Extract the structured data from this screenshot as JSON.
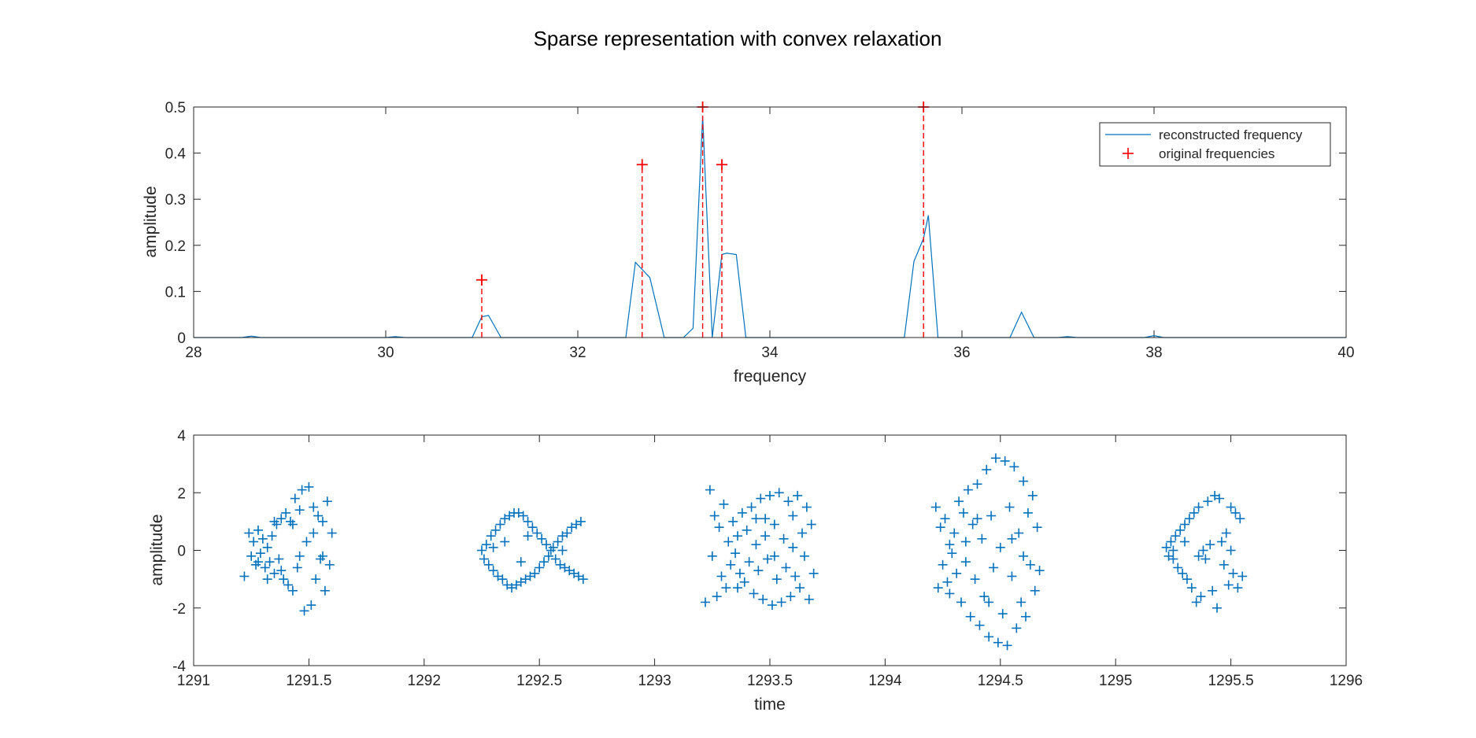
{
  "figure_title": "Sparse representation with convex relaxation",
  "chart_data": [
    {
      "type": "line",
      "xlabel": "frequency",
      "ylabel": "amplitude",
      "xlim": [
        28,
        40
      ],
      "ylim": [
        0,
        0.5
      ],
      "xticks": [
        28,
        30,
        32,
        34,
        36,
        38,
        40
      ],
      "yticks": [
        0,
        0.1,
        0.2,
        0.3,
        0.4,
        0.5
      ],
      "legend_position": "top-right",
      "series": [
        {
          "name": "reconstructed frequency",
          "color": "#0072BD",
          "style": "line",
          "x": [
            28.0,
            28.5,
            28.6,
            28.7,
            30.0,
            30.1,
            30.2,
            30.9,
            31.0,
            31.07,
            31.2,
            32.5,
            32.6,
            32.75,
            32.9,
            33.1,
            33.2,
            33.3,
            33.4,
            33.5,
            33.55,
            33.65,
            33.75,
            35.4,
            35.5,
            35.6,
            35.65,
            35.75,
            36.5,
            36.62,
            36.75,
            37.0,
            37.1,
            37.2,
            37.9,
            38.0,
            38.1,
            40.0
          ],
          "y": [
            0.0,
            0.0,
            0.003,
            0.0,
            0.0,
            0.002,
            0.0,
            0.0,
            0.045,
            0.048,
            0.0,
            0.0,
            0.163,
            0.13,
            0.0,
            0.0,
            0.02,
            0.48,
            0.0,
            0.18,
            0.183,
            0.18,
            0.0,
            0.0,
            0.165,
            0.215,
            0.265,
            0.0,
            0.0,
            0.055,
            0.0,
            0.0,
            0.002,
            0.0,
            0.0,
            0.004,
            0.0,
            0.0
          ]
        },
        {
          "name": "original frequencies",
          "color": "#FF0000",
          "style": "stem-plus",
          "x": [
            31.0,
            32.67,
            33.3,
            33.5,
            35.6
          ],
          "y": [
            0.125,
            0.375,
            0.5,
            0.375,
            0.5
          ]
        }
      ]
    },
    {
      "type": "scatter",
      "xlabel": "time",
      "ylabel": "amplitude",
      "xlim": [
        1291,
        1296
      ],
      "ylim": [
        -4,
        4
      ],
      "xticks": [
        1291,
        1291.5,
        1292,
        1292.5,
        1293,
        1293.5,
        1294,
        1294.5,
        1295,
        1295.5,
        1296
      ],
      "yticks": [
        -4,
        -2,
        0,
        2,
        4
      ],
      "marker": "+",
      "color": "#0072BD",
      "points": [
        [
          1291.22,
          -0.9
        ],
        [
          1291.24,
          0.6
        ],
        [
          1291.25,
          -0.2
        ],
        [
          1291.26,
          0.3
        ],
        [
          1291.27,
          -0.5
        ],
        [
          1291.28,
          0.7
        ],
        [
          1291.29,
          -0.1
        ],
        [
          1291.3,
          0.4
        ],
        [
          1291.31,
          -0.6
        ],
        [
          1291.32,
          0.1
        ],
        [
          1291.33,
          -0.4
        ],
        [
          1291.34,
          0.5
        ],
        [
          1291.35,
          -0.8
        ],
        [
          1291.36,
          0.9
        ],
        [
          1291.37,
          -0.3
        ],
        [
          1291.38,
          1.1
        ],
        [
          1291.39,
          -1.0
        ],
        [
          1291.4,
          1.3
        ],
        [
          1291.41,
          -1.2
        ],
        [
          1291.42,
          1.0
        ],
        [
          1291.43,
          -1.4
        ],
        [
          1291.44,
          1.8
        ],
        [
          1291.45,
          -0.6
        ],
        [
          1291.46,
          1.4
        ],
        [
          1291.47,
          2.1
        ],
        [
          1291.48,
          -2.1
        ],
        [
          1291.49,
          0.3
        ],
        [
          1291.5,
          2.2
        ],
        [
          1291.51,
          -1.9
        ],
        [
          1291.52,
          1.5
        ],
        [
          1291.53,
          -1.0
        ],
        [
          1291.54,
          1.2
        ],
        [
          1291.55,
          -0.3
        ],
        [
          1291.56,
          1.0
        ],
        [
          1291.57,
          -1.4
        ],
        [
          1291.58,
          1.7
        ],
        [
          1291.59,
          -0.5
        ],
        [
          1291.6,
          0.6
        ],
        [
          1291.46,
          -0.2
        ],
        [
          1291.43,
          0.9
        ],
        [
          1291.35,
          1.0
        ],
        [
          1291.32,
          -1.0
        ],
        [
          1291.28,
          -0.4
        ],
        [
          1291.38,
          -0.7
        ],
        [
          1291.52,
          0.6
        ],
        [
          1291.56,
          -0.2
        ],
        [
          1292.25,
          0.0
        ],
        [
          1292.26,
          -0.3
        ],
        [
          1292.27,
          0.2
        ],
        [
          1292.28,
          -0.5
        ],
        [
          1292.29,
          0.5
        ],
        [
          1292.3,
          -0.7
        ],
        [
          1292.31,
          0.7
        ],
        [
          1292.32,
          -0.9
        ],
        [
          1292.33,
          0.9
        ],
        [
          1292.34,
          -1.0
        ],
        [
          1292.35,
          1.1
        ],
        [
          1292.36,
          -1.2
        ],
        [
          1292.37,
          1.2
        ],
        [
          1292.38,
          -1.3
        ],
        [
          1292.39,
          1.3
        ],
        [
          1292.4,
          -1.2
        ],
        [
          1292.41,
          1.3
        ],
        [
          1292.42,
          -1.1
        ],
        [
          1292.43,
          1.2
        ],
        [
          1292.44,
          -1.0
        ],
        [
          1292.45,
          1.0
        ],
        [
          1292.46,
          -0.9
        ],
        [
          1292.47,
          0.8
        ],
        [
          1292.48,
          -0.8
        ],
        [
          1292.49,
          0.6
        ],
        [
          1292.5,
          -0.6
        ],
        [
          1292.51,
          0.4
        ],
        [
          1292.52,
          -0.4
        ],
        [
          1292.53,
          0.2
        ],
        [
          1292.54,
          -0.2
        ],
        [
          1292.55,
          0.0
        ],
        [
          1292.56,
          0.1
        ],
        [
          1292.57,
          -0.3
        ],
        [
          1292.58,
          0.3
        ],
        [
          1292.59,
          -0.5
        ],
        [
          1292.6,
          0.5
        ],
        [
          1292.61,
          -0.6
        ],
        [
          1292.62,
          0.6
        ],
        [
          1292.63,
          -0.7
        ],
        [
          1292.64,
          0.8
        ],
        [
          1292.65,
          -0.8
        ],
        [
          1292.66,
          0.9
        ],
        [
          1292.67,
          -0.9
        ],
        [
          1292.68,
          1.0
        ],
        [
          1292.69,
          -1.0
        ],
        [
          1292.35,
          0.3
        ],
        [
          1292.42,
          -0.4
        ],
        [
          1292.3,
          0.1
        ],
        [
          1292.45,
          0.5
        ],
        [
          1292.6,
          0.0
        ],
        [
          1293.22,
          -1.8
        ],
        [
          1293.24,
          2.1
        ],
        [
          1293.25,
          -0.2
        ],
        [
          1293.26,
          1.2
        ],
        [
          1293.27,
          -1.6
        ],
        [
          1293.28,
          0.8
        ],
        [
          1293.29,
          -0.9
        ],
        [
          1293.3,
          1.6
        ],
        [
          1293.31,
          -1.3
        ],
        [
          1293.32,
          0.3
        ],
        [
          1293.33,
          -0.5
        ],
        [
          1293.34,
          1.0
        ],
        [
          1293.35,
          -0.1
        ],
        [
          1293.36,
          0.5
        ],
        [
          1293.37,
          -0.8
        ],
        [
          1293.38,
          1.3
        ],
        [
          1293.39,
          -1.1
        ],
        [
          1293.4,
          0.7
        ],
        [
          1293.41,
          -0.4
        ],
        [
          1293.42,
          1.5
        ],
        [
          1293.43,
          -1.5
        ],
        [
          1293.44,
          0.2
        ],
        [
          1293.45,
          -0.7
        ],
        [
          1293.46,
          1.8
        ],
        [
          1293.47,
          -1.7
        ],
        [
          1293.48,
          1.1
        ],
        [
          1293.49,
          -0.3
        ],
        [
          1293.5,
          1.9
        ],
        [
          1293.51,
          -1.9
        ],
        [
          1293.52,
          0.9
        ],
        [
          1293.53,
          -1.0
        ],
        [
          1293.54,
          2.0
        ],
        [
          1293.55,
          -1.8
        ],
        [
          1293.56,
          0.4
        ],
        [
          1293.57,
          -0.6
        ],
        [
          1293.58,
          1.7
        ],
        [
          1293.59,
          -1.6
        ],
        [
          1293.6,
          1.2
        ],
        [
          1293.61,
          -0.9
        ],
        [
          1293.62,
          1.9
        ],
        [
          1293.63,
          -1.3
        ],
        [
          1293.64,
          0.6
        ],
        [
          1293.65,
          -0.2
        ],
        [
          1293.66,
          1.5
        ],
        [
          1293.67,
          -1.7
        ],
        [
          1293.68,
          0.9
        ],
        [
          1293.69,
          -0.8
        ],
        [
          1293.36,
          -1.3
        ],
        [
          1293.44,
          1.1
        ],
        [
          1293.52,
          -0.2
        ],
        [
          1293.6,
          0.1
        ],
        [
          1293.48,
          0.5
        ],
        [
          1294.22,
          1.5
        ],
        [
          1294.23,
          -1.3
        ],
        [
          1294.24,
          0.8
        ],
        [
          1294.25,
          -0.5
        ],
        [
          1294.26,
          1.1
        ],
        [
          1294.27,
          -1.1
        ],
        [
          1294.28,
          0.2
        ],
        [
          1294.29,
          -0.1
        ],
        [
          1294.3,
          0.6
        ],
        [
          1294.31,
          -0.8
        ],
        [
          1294.32,
          1.7
        ],
        [
          1294.33,
          -1.8
        ],
        [
          1294.34,
          1.3
        ],
        [
          1294.35,
          -0.4
        ],
        [
          1294.36,
          2.1
        ],
        [
          1294.37,
          -2.3
        ],
        [
          1294.38,
          0.9
        ],
        [
          1294.39,
          -1.0
        ],
        [
          1294.4,
          2.3
        ],
        [
          1294.41,
          -2.6
        ],
        [
          1294.42,
          0.4
        ],
        [
          1294.43,
          -1.6
        ],
        [
          1294.44,
          2.8
        ],
        [
          1294.45,
          -3.0
        ],
        [
          1294.46,
          1.2
        ],
        [
          1294.47,
          -0.6
        ],
        [
          1294.48,
          3.2
        ],
        [
          1294.49,
          -3.2
        ],
        [
          1294.5,
          0.1
        ],
        [
          1294.51,
          -2.2
        ],
        [
          1294.52,
          3.1
        ],
        [
          1294.53,
          -3.3
        ],
        [
          1294.54,
          1.5
        ],
        [
          1294.55,
          -0.9
        ],
        [
          1294.56,
          2.9
        ],
        [
          1294.57,
          -2.7
        ],
        [
          1294.58,
          0.6
        ],
        [
          1294.59,
          -1.8
        ],
        [
          1294.6,
          2.4
        ],
        [
          1294.61,
          -2.3
        ],
        [
          1294.62,
          1.3
        ],
        [
          1294.63,
          -0.5
        ],
        [
          1294.64,
          1.9
        ],
        [
          1294.65,
          -1.4
        ],
        [
          1294.66,
          0.8
        ],
        [
          1294.67,
          -0.7
        ],
        [
          1294.35,
          0.3
        ],
        [
          1294.45,
          -1.8
        ],
        [
          1294.55,
          0.4
        ],
        [
          1294.4,
          1.1
        ],
        [
          1294.6,
          -0.2
        ],
        [
          1294.28,
          -1.5
        ],
        [
          1295.22,
          0.1
        ],
        [
          1295.23,
          -0.2
        ],
        [
          1295.24,
          0.3
        ],
        [
          1295.25,
          -0.3
        ],
        [
          1295.26,
          0.5
        ],
        [
          1295.27,
          -0.6
        ],
        [
          1295.28,
          0.7
        ],
        [
          1295.29,
          -0.8
        ],
        [
          1295.3,
          0.9
        ],
        [
          1295.31,
          -1.0
        ],
        [
          1295.32,
          1.1
        ],
        [
          1295.33,
          -1.3
        ],
        [
          1295.34,
          1.3
        ],
        [
          1295.35,
          -1.8
        ],
        [
          1295.36,
          1.5
        ],
        [
          1295.37,
          -1.6
        ],
        [
          1295.38,
          0.0
        ],
        [
          1295.39,
          -0.3
        ],
        [
          1295.4,
          1.7
        ],
        [
          1295.41,
          0.2
        ],
        [
          1295.42,
          -1.4
        ],
        [
          1295.43,
          1.9
        ],
        [
          1295.44,
          -2.0
        ],
        [
          1295.45,
          1.8
        ],
        [
          1295.46,
          0.3
        ],
        [
          1295.47,
          -0.5
        ],
        [
          1295.48,
          0.6
        ],
        [
          1295.49,
          -1.2
        ],
        [
          1295.5,
          1.5
        ],
        [
          1295.51,
          -0.8
        ],
        [
          1295.52,
          1.3
        ],
        [
          1295.53,
          -1.3
        ],
        [
          1295.54,
          1.1
        ],
        [
          1295.55,
          -0.9
        ],
        [
          1295.25,
          0.0
        ],
        [
          1295.3,
          0.3
        ],
        [
          1295.36,
          -0.2
        ],
        [
          1295.5,
          0.0
        ]
      ]
    }
  ]
}
